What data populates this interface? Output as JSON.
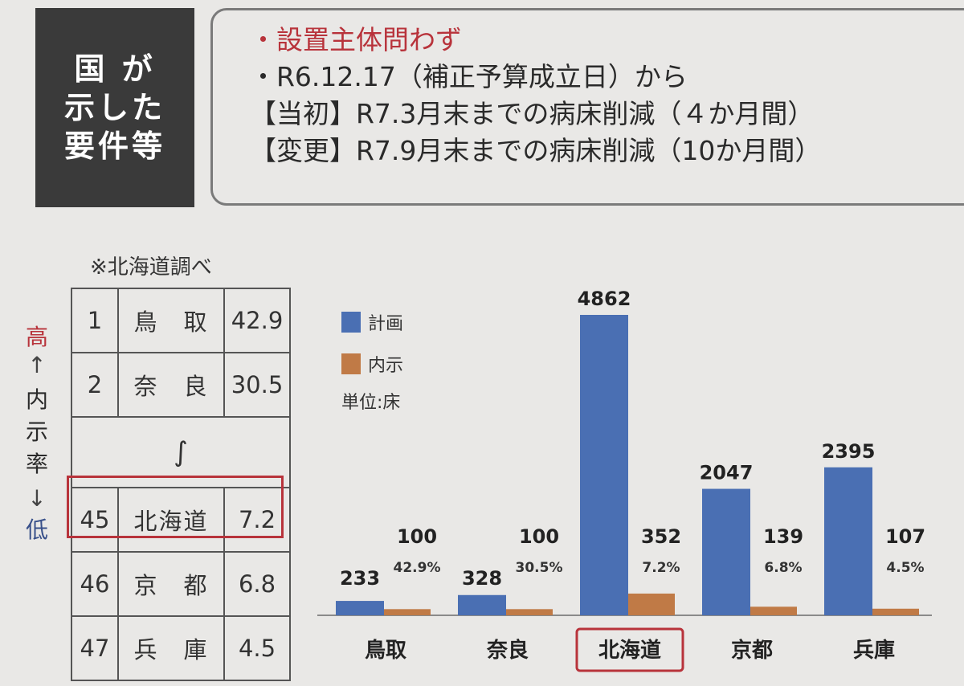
{
  "label_box": {
    "lines": [
      "国 が",
      "示した",
      "要件等"
    ]
  },
  "requirements": {
    "line1": "・設置主体問わず",
    "line2": "・R6.12.17（補正予算成立日）から",
    "line3": "【当初】R7.3月末までの病床削減（４か月間）",
    "line4": "【変更】R7.9月末までの病床削減（10か月間）"
  },
  "note": "※北海道調べ",
  "ranking": {
    "rows": [
      {
        "rank": "1",
        "pref": "鳥　取",
        "rate": "42.9"
      },
      {
        "rank": "2",
        "pref": "奈　良",
        "rate": "30.5"
      },
      {
        "rank": "45",
        "pref": "北海道",
        "rate": "7.2"
      },
      {
        "rank": "46",
        "pref": "京　都",
        "rate": "6.8"
      },
      {
        "rank": "47",
        "pref": "兵　庫",
        "rate": "4.5"
      }
    ],
    "ellipsis": "∫"
  },
  "axis_side": {
    "high": "高",
    "low": "低",
    "label": [
      "内",
      "示",
      "率"
    ],
    "arrow_up": "↑",
    "arrow_down": "↓"
  },
  "chart_data": {
    "type": "bar",
    "categories": [
      "鳥取",
      "奈良",
      "北海道",
      "京都",
      "兵庫"
    ],
    "series": [
      {
        "name": "計画",
        "values": [
          233,
          328,
          4862,
          2047,
          2395
        ],
        "color": "#4a6fb3"
      },
      {
        "name": "内示",
        "values": [
          100,
          100,
          352,
          139,
          107
        ],
        "color": "#c07a46"
      }
    ],
    "naiji_rate_labels": [
      "42.9%",
      "30.5%",
      "7.2%",
      "6.8%",
      "4.5%"
    ],
    "unit": "単位:床",
    "highlight_category": "北海道",
    "highlight_color": "#b8333b",
    "ylim": [
      0,
      4862
    ],
    "legend_position": "top-left",
    "grid": false
  }
}
